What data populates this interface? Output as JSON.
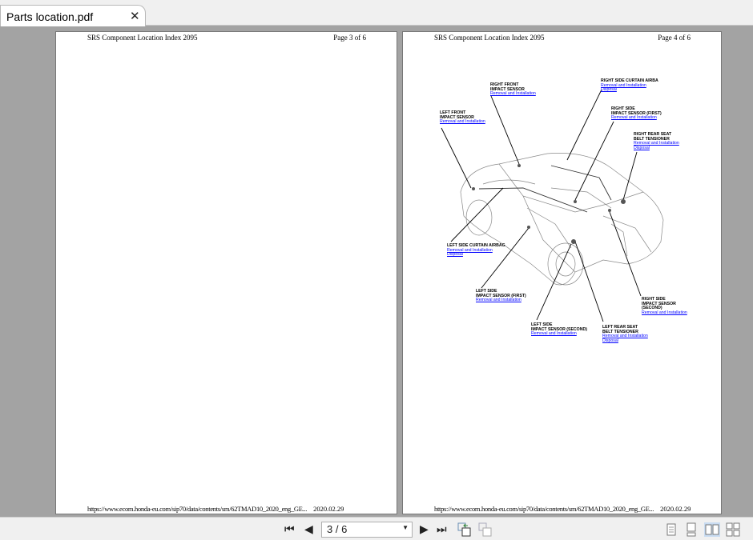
{
  "tab": {
    "title": "Parts location.pdf",
    "close": "✕"
  },
  "pages": [
    {
      "header_left": "SRS Component Location Index 2095",
      "header_right": "Page 3 of 6",
      "footer_left": "https://www.ecom.honda-eu.com/sip70/data/contents/sm/62TMAD10_2020_eng_GE...",
      "footer_right": "2020.02.29"
    },
    {
      "header_left": "SRS Component Location Index 2095",
      "header_right": "Page 4 of 6",
      "footer_left": "https://www.ecom.honda-eu.com/sip70/data/contents/sm/62TMAD10_2020_eng_GE...",
      "footer_right": "2020.02.29"
    }
  ],
  "labels": {
    "rf": {
      "l1": "RIGHT FRONT",
      "l2": "IMPACT SENSOR",
      "a1": "Removal and Installation"
    },
    "rsca": {
      "l1": "RIGHT SIDE CURTAIN AIRBA",
      "a1": "Removal and Installation",
      "a2": "Disposal"
    },
    "lf": {
      "l1": "LEFT FRONT",
      "l2": "IMPACT SENSOR",
      "a1": "Removal and Installation"
    },
    "rs1": {
      "l1": "RIGHT SIDE",
      "l2": "IMPACT SENSOR (FIRST)",
      "a1": "Removal and Installation"
    },
    "rrbt": {
      "l1": "RIGHT REAR SEAT",
      "l2": "BELT TENSIONER",
      "a1": "Removal and Installation",
      "a2": "Disposal"
    },
    "lsca": {
      "l1": "LEFT SIDE CURTAIN AIRBAG",
      "a1": "Removal and Installation",
      "a2": "Disposal"
    },
    "ls1": {
      "l1": "LEFT SIDE",
      "l2": "IMPACT SENSOR (FIRST)",
      "a1": "Removal and Installation"
    },
    "rs2": {
      "l1": "RIGHT SIDE",
      "l2": "IMPACT SENSOR",
      "l3": "(SECOND)",
      "a1": "Removal and Installation"
    },
    "ls2": {
      "l1": "LEFT SIDE",
      "l2": "IMPACT SENSOR (SECOND)",
      "a1": "Removal and Installation"
    },
    "lrbt": {
      "l1": "LEFT REAR SEAT",
      "l2": "BELT TENSIONER",
      "a1": "Removal and Installation",
      "a2": "Disposal"
    }
  },
  "toolbar": {
    "page_value": "3 / 6",
    "view_mode_active": "two-page"
  }
}
